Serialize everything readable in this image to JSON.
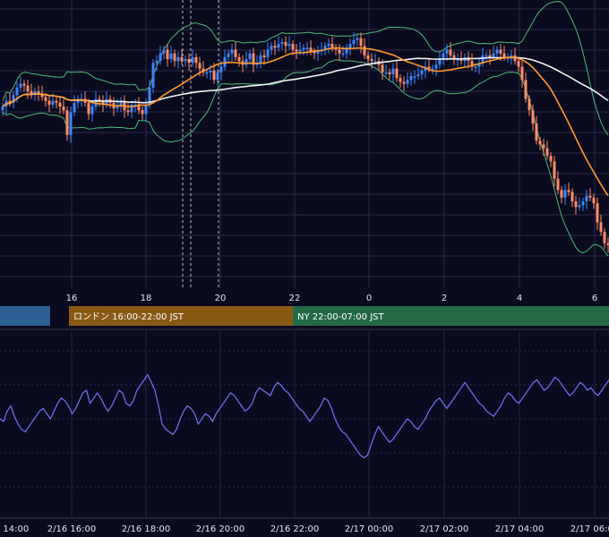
{
  "chart_data": [
    {
      "type": "candlestick",
      "x_ticks": [
        "16",
        "18",
        "20",
        "22",
        "0",
        "2",
        "4",
        "6"
      ],
      "indicators": [
        "Bollinger Bands",
        "Moving Average (orange)",
        "Moving Average (white)"
      ],
      "grid": true,
      "colors": {
        "up": "#3f86ff",
        "down": "#ff8c6a",
        "bollinger": "#4dbb78",
        "ma_short": "#ff9a2e",
        "ma_long": "#f2f2f2",
        "grid": "#2a2a48",
        "session_dashes": "#bfbfbf"
      },
      "sessions": [
        {
          "label": "",
          "color": "#2d5e94"
        },
        {
          "label": "ロンドン 16:00-22:00 JST",
          "color": "#8a5a14"
        },
        {
          "label": "NY 22:00-07:00 JST",
          "color": "#236944"
        }
      ],
      "series": [
        {
          "name": "close",
          "x": [
            0,
            1,
            2,
            3,
            4,
            5,
            6,
            7,
            8,
            9,
            10,
            11,
            12,
            13,
            14,
            15,
            16,
            17,
            18,
            19,
            20,
            21,
            22,
            23,
            24,
            25,
            26,
            27,
            28,
            29,
            30,
            31,
            32,
            33,
            34,
            35,
            36,
            37,
            38,
            39,
            40,
            41,
            42,
            43,
            44,
            45,
            46,
            47,
            48,
            49,
            50,
            51,
            52,
            53,
            54,
            55,
            56,
            57,
            58,
            59,
            60,
            61,
            62,
            63,
            64,
            65,
            66,
            67,
            68,
            69,
            70,
            71,
            72,
            73,
            74,
            75,
            76,
            77,
            78,
            79,
            80,
            81,
            82,
            83,
            84,
            85,
            86,
            87,
            88,
            89,
            90,
            91,
            92,
            93,
            94,
            95,
            96,
            97,
            98,
            99,
            100,
            101,
            102,
            103,
            104,
            105,
            106,
            107,
            108,
            109,
            110,
            111,
            112,
            113,
            114,
            115,
            116,
            117,
            118,
            119,
            120,
            121,
            122,
            123,
            124,
            125,
            126,
            127,
            128,
            129,
            130,
            131,
            132,
            133,
            134,
            135,
            136,
            137,
            138,
            139,
            140,
            141,
            142,
            143,
            144,
            145,
            146,
            147,
            148,
            149,
            150,
            151,
            152,
            153,
            154,
            155,
            156,
            157,
            158,
            159,
            160,
            161,
            162,
            163,
            164,
            165,
            166,
            167,
            168,
            169
          ],
          "values": [
            58,
            61,
            60,
            64,
            68,
            70,
            69,
            66,
            64,
            66,
            65,
            63,
            61,
            59,
            61,
            60,
            58,
            56,
            43,
            55,
            60,
            62,
            62,
            60,
            54,
            58,
            62,
            61,
            59,
            62,
            60,
            57,
            58,
            61,
            56,
            55,
            59,
            59,
            56,
            54,
            59,
            68,
            81,
            82,
            86,
            88,
            83,
            86,
            82,
            84,
            82,
            83,
            81,
            84,
            81,
            78,
            76,
            76,
            77,
            72,
            76,
            79,
            84,
            86,
            88,
            84,
            82,
            80,
            83,
            86,
            80,
            81,
            85,
            84,
            88,
            90,
            89,
            91,
            92,
            90,
            91,
            88,
            87,
            88,
            89,
            89,
            87,
            86,
            87,
            88,
            90,
            91,
            89,
            88,
            86,
            86,
            89,
            91,
            93,
            94,
            90,
            85,
            83,
            82,
            82,
            80,
            76,
            76,
            75,
            78,
            73,
            71,
            70,
            72,
            74,
            74,
            75,
            77,
            79,
            78,
            78,
            80,
            83,
            86,
            88,
            85,
            83,
            83,
            82,
            84,
            82,
            79,
            79,
            81,
            85,
            85,
            84,
            86,
            88,
            86,
            84,
            84,
            85,
            82,
            79,
            72,
            62,
            56,
            49,
            40,
            38,
            36,
            32,
            29,
            20,
            14,
            10,
            14,
            13,
            8,
            5,
            6,
            8,
            11,
            10,
            7,
            -3,
            -8,
            -14,
            -15
          ]
        }
      ]
    },
    {
      "type": "line",
      "x_ticks": [
        "2/16 14:00",
        "2/16 16:00",
        "2/16 18:00",
        "2/16 20:00",
        "2/16 22:00",
        "2/17 00:00",
        "2/17 02:00",
        "2/17 04:00",
        "2/17 06:00"
      ],
      "grid": true,
      "series": [
        {
          "name": "",
          "color": "#6e77f2",
          "values": [
            52,
            51,
            55,
            57,
            53,
            50,
            48,
            47,
            49,
            51,
            53,
            55,
            56,
            54,
            52,
            55,
            58,
            60,
            59,
            57,
            54,
            56,
            59,
            62,
            63,
            58,
            60,
            62,
            60,
            57,
            55,
            57,
            60,
            63,
            62,
            58,
            57,
            59,
            63,
            65,
            67,
            69,
            66,
            63,
            57,
            50,
            48,
            47,
            46,
            48,
            52,
            55,
            57,
            56,
            54,
            50,
            52,
            54,
            53,
            51,
            54,
            56,
            58,
            60,
            62,
            61,
            59,
            57,
            55,
            56,
            58,
            62,
            64,
            63,
            62,
            61,
            64,
            66,
            65,
            63,
            62,
            60,
            58,
            56,
            55,
            53,
            51,
            53,
            55,
            57,
            60,
            59,
            56,
            52,
            49,
            47,
            46,
            44,
            42,
            40,
            38,
            37,
            38,
            42,
            46,
            49,
            47,
            45,
            43,
            44,
            46,
            48,
            50,
            52,
            51,
            49,
            48,
            50,
            52,
            55,
            57,
            59,
            60,
            58,
            56,
            58,
            60,
            62,
            64,
            66,
            64,
            62,
            60,
            58,
            57,
            55,
            54,
            53,
            55,
            57,
            60,
            62,
            61,
            59,
            58,
            60,
            62,
            64,
            66,
            67,
            65,
            63,
            64,
            66,
            68,
            67,
            65,
            63,
            61,
            62,
            64,
            66,
            65,
            63,
            64,
            62,
            61,
            63,
            65,
            67
          ]
        }
      ]
    }
  ]
}
